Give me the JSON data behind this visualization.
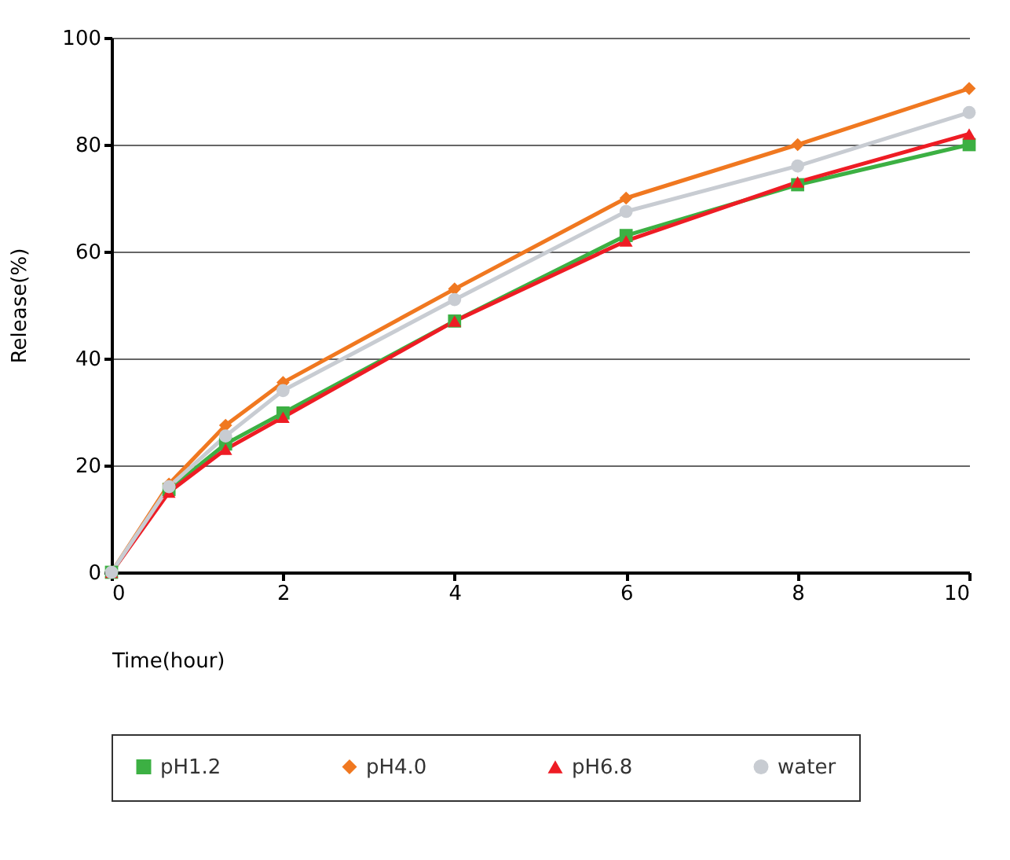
{
  "chart_data": {
    "type": "line",
    "xlabel": "Time(hour)",
    "ylabel": "Release(%)",
    "x": [
      0,
      0.67,
      1.33,
      2,
      4,
      6,
      8,
      10
    ],
    "xlim": [
      0,
      10
    ],
    "xticks": [
      0,
      2,
      4,
      6,
      8,
      10
    ],
    "ylim": [
      0,
      100
    ],
    "yticks": [
      0,
      20,
      40,
      60,
      80,
      100
    ],
    "grid": "y",
    "legend": "bottom",
    "series": [
      {
        "name": "pH1.2",
        "color": "#3cb043",
        "marker": "square",
        "values": [
          0,
          15.5,
          24,
          29.8,
          47,
          63,
          72.5,
          80
        ]
      },
      {
        "name": "pH4.0",
        "color": "#f07820",
        "marker": "diamond",
        "values": [
          0,
          16.5,
          27.5,
          35.5,
          53,
          70,
          80,
          90.5
        ]
      },
      {
        "name": "pH6.8",
        "color": "#ee1c24",
        "marker": "triangle",
        "values": [
          0,
          15,
          23,
          29,
          47,
          62,
          73,
          82
        ]
      },
      {
        "name": "water",
        "color": "#c8ccd2",
        "marker": "circle",
        "values": [
          0,
          16,
          25.5,
          34,
          51,
          67.5,
          76,
          86
        ]
      }
    ]
  }
}
